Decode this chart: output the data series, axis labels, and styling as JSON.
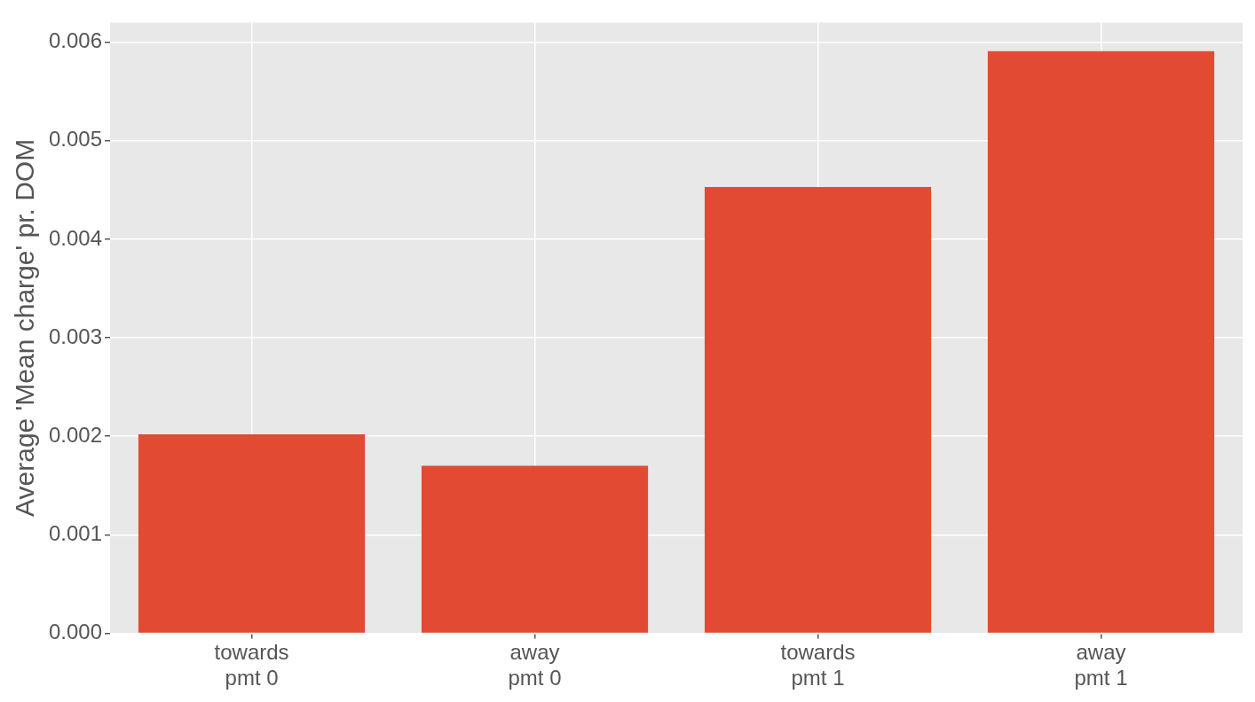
{
  "chart_data": {
    "type": "bar",
    "ylabel": "Average 'Mean charge' pr. DOM",
    "categories": [
      "towards\npmt 0",
      "away\npmt 0",
      "towards\npmt 1",
      "away\npmt 1"
    ],
    "values": [
      0.00202,
      0.0017,
      0.00453,
      0.00591
    ],
    "color": "#e24a33",
    "ylim": [
      0,
      0.0062
    ],
    "yticks": [
      {
        "value": 0,
        "label": "0.000"
      },
      0.001,
      0.002,
      0.003,
      0.004,
      0.005,
      0.006
    ],
    "grid": true
  }
}
